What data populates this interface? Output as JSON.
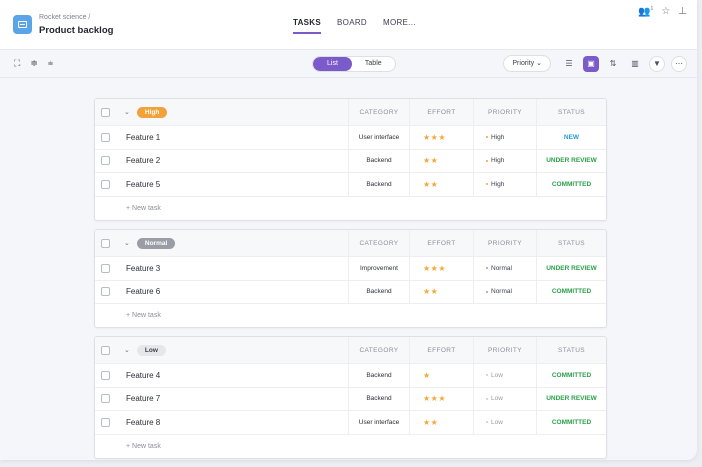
{
  "header": {
    "breadcrumb": "Rocket science  /",
    "title": "Product backlog",
    "tabs": [
      {
        "label": "TASKS",
        "active": true
      },
      {
        "label": "BOARD",
        "active": false
      },
      {
        "label": "MORE...",
        "active": false
      }
    ],
    "user_count": "1"
  },
  "toolbar": {
    "view_options": [
      {
        "label": "List",
        "active": true
      },
      {
        "label": "Table",
        "active": false
      }
    ],
    "priority_button": "Priority",
    "accent_color": "#7b5bc9"
  },
  "columns": [
    "CATEGORY",
    "EFFORT",
    "PRIORITY",
    "STATUS"
  ],
  "new_task_label": "+ New task",
  "status_colors": {
    "NEW": "#2b9ad8",
    "UNDER REVIEW": "#2aa04a",
    "COMMITTED": "#2aa04a"
  },
  "groups": [
    {
      "label": "High",
      "badge_color": "#f3a23a",
      "badge_text_color": "#ffffff",
      "rows": [
        {
          "name": "Feature 1",
          "category": "User interface",
          "effort": "★★★",
          "priority": "High",
          "priority_color": "#f3a23a",
          "status": "NEW"
        },
        {
          "name": "Feature 2",
          "category": "Backend",
          "effort": "★★",
          "priority": "High",
          "priority_color": "#f3a23a",
          "status": "UNDER REVIEW"
        },
        {
          "name": "Feature 5",
          "category": "Backend",
          "effort": "★★",
          "priority": "High",
          "priority_color": "#f3a23a",
          "status": "COMMITTED"
        }
      ]
    },
    {
      "label": "Normal",
      "badge_color": "#9a9da6",
      "badge_text_color": "#ffffff",
      "rows": [
        {
          "name": "Feature 3",
          "category": "Improvement",
          "effort": "★★★",
          "priority": "Normal",
          "priority_color": "#9a9da6",
          "status": "UNDER REVIEW"
        },
        {
          "name": "Feature 6",
          "category": "Backend",
          "effort": "★★",
          "priority": "Normal",
          "priority_color": "#9a9da6",
          "status": "COMMITTED"
        }
      ]
    },
    {
      "label": "Low",
      "badge_color": "#e6e7eb",
      "badge_text_color": "#3a3f49",
      "rows": [
        {
          "name": "Feature 4",
          "category": "Backend",
          "effort": "★",
          "priority": "Low",
          "priority_color": "#c9ccd3",
          "status": "COMMITTED"
        },
        {
          "name": "Feature 7",
          "category": "Backend",
          "effort": "★★★",
          "priority": "Low",
          "priority_color": "#c9ccd3",
          "status": "UNDER REVIEW"
        },
        {
          "name": "Feature 8",
          "category": "User interface",
          "effort": "★★",
          "priority": "Low",
          "priority_color": "#c9ccd3",
          "status": "COMMITTED"
        }
      ]
    }
  ]
}
